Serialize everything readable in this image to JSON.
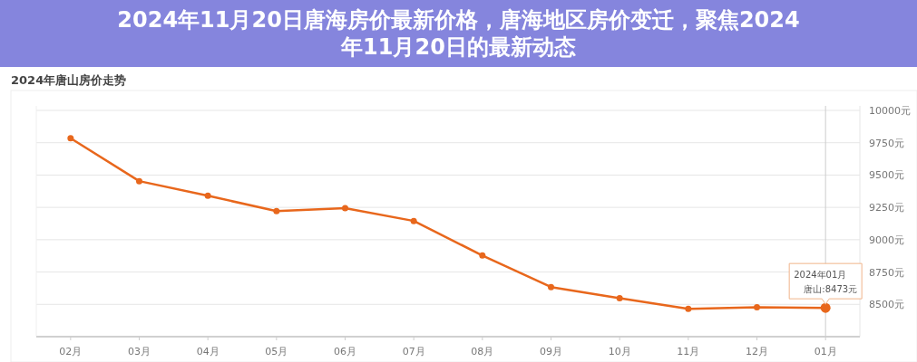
{
  "chart_data": {
    "type": "line",
    "title": "2024年唐山房价走势",
    "categories": [
      "02月",
      "03月",
      "04月",
      "05月",
      "06月",
      "07月",
      "08月",
      "09月",
      "10月",
      "11月",
      "12月",
      "01月"
    ],
    "series": [
      {
        "color": "#e8671c",
        "values": [
          9785,
          9453,
          9340,
          9221,
          9244,
          9145,
          8878,
          8634,
          8547,
          8465,
          8477,
          8473
        ]
      }
    ],
    "ylim": [
      8250,
      10000
    ],
    "yticks": [
      {
        "value": 8250,
        "label": null
      },
      {
        "value": 8500,
        "label": "8500元"
      },
      {
        "value": 8750,
        "label": "8750元"
      },
      {
        "value": 9000,
        "label": "9000元"
      },
      {
        "value": 9250,
        "label": "9250元"
      },
      {
        "value": 9500,
        "label": "9500元"
      },
      {
        "value": 9750,
        "label": "9750元"
      },
      {
        "value": 10000,
        "label": "10000元"
      }
    ],
    "grid": "y",
    "marker": "circle",
    "line_style": "solid",
    "ref_lines": [
      {
        "axis": "x",
        "value": "01月",
        "color": "#cccccc"
      }
    ],
    "annotations": [
      "2024年01月",
      {
        "text": "唐山:8473元",
        "x": "01月",
        "y": 8473
      },
      "2024年11月20日唐海房价最新价格，唐海地区房价变迁，聚焦2024年11月20日的最新动态"
    ]
  }
}
